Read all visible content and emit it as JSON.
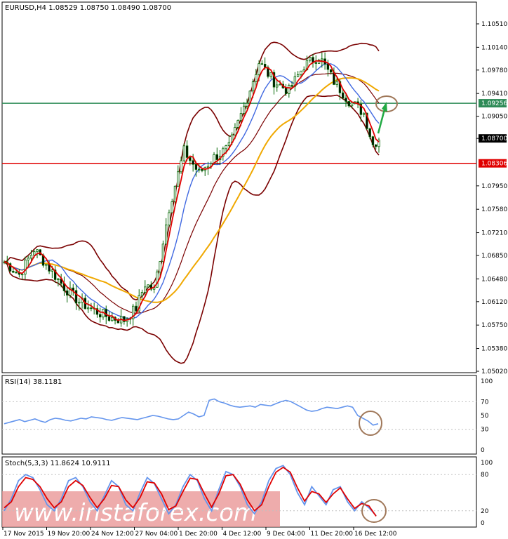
{
  "chart_data": [
    {
      "type": "candlestick",
      "title": "EURUSD,H4  1.08529 1.08750 1.08490 1.08700",
      "ylim": [
        1.0502,
        1.1051
      ],
      "y_ticks": [
        "1.10510",
        "1.10140",
        "1.09780",
        "1.09410",
        "1.09050",
        "1.08700",
        "1.07950",
        "1.07580",
        "1.07210",
        "1.06850",
        "1.06480",
        "1.06120",
        "1.05750",
        "1.05380",
        "1.05020"
      ],
      "price_labels": [
        {
          "value": 1.09256,
          "text": "1.09256",
          "color": "#2e8b57"
        },
        {
          "value": 1.08306,
          "text": "1.08306",
          "color": "#e00000"
        },
        {
          "value": 1.087,
          "text": "1.08700",
          "color": "#000000"
        }
      ],
      "x_labels": [
        "17 Nov 2015",
        "19 Nov 20:00",
        "24 Nov 12:00",
        "27 Nov 04:00",
        "1 Dec 20:00",
        "4 Dec 12:00",
        "9 Dec 04:00",
        "11 Dec 20:00",
        "16 Dec 12:00"
      ],
      "close_path": [
        [
          0,
          1.0675
        ],
        [
          5,
          1.0655
        ],
        [
          10,
          1.0695
        ],
        [
          15,
          1.0665
        ],
        [
          20,
          1.0635
        ],
        [
          25,
          1.0612
        ],
        [
          30,
          1.0598
        ],
        [
          35,
          1.0587
        ],
        [
          40,
          1.0583
        ],
        [
          44,
          1.0602
        ],
        [
          47,
          1.064
        ],
        [
          50,
          1.063
        ],
        [
          55,
          1.076
        ],
        [
          60,
          1.085
        ],
        [
          65,
          1.0815
        ],
        [
          70,
          1.084
        ],
        [
          75,
          1.0855
        ],
        [
          80,
          1.092
        ],
        [
          85,
          1.099
        ],
        [
          90,
          1.096
        ],
        [
          95,
          1.0945
        ],
        [
          100,
          1.0985
        ],
        [
          105,
          1.1
        ],
        [
          110,
          1.096
        ],
        [
          115,
          1.093
        ],
        [
          120,
          1.091
        ],
        [
          123,
          1.086
        ],
        [
          125,
          1.087
        ]
      ]
    },
    {
      "type": "line",
      "title": "RSI(14) 38.1181",
      "ylim": [
        0,
        100
      ],
      "y_ticks": [
        "100",
        "70",
        "50",
        "30",
        "0"
      ],
      "values": [
        38,
        40,
        42,
        44,
        41,
        43,
        45,
        42,
        40,
        44,
        46,
        45,
        43,
        42,
        44,
        46,
        45,
        48,
        47,
        46,
        44,
        43,
        45,
        47,
        46,
        45,
        44,
        46,
        48,
        50,
        49,
        47,
        45,
        44,
        45,
        50,
        55,
        52,
        48,
        50,
        72,
        74,
        70,
        68,
        65,
        63,
        62,
        63,
        64,
        62,
        66,
        65,
        64,
        67,
        70,
        72,
        70,
        66,
        62,
        58,
        56,
        57,
        60,
        62,
        61,
        60,
        62,
        64,
        62,
        50,
        46,
        42,
        36,
        38
      ]
    },
    {
      "type": "line",
      "title": "Stoch(5,3,3) 11.8624 10.9111",
      "ylim": [
        0,
        100
      ],
      "y_ticks": [
        "100",
        "80",
        "20",
        "0"
      ],
      "series": [
        {
          "values": [
            20,
            40,
            70,
            80,
            75,
            55,
            30,
            20,
            40,
            70,
            75,
            60,
            35,
            20,
            45,
            70,
            60,
            30,
            20,
            50,
            75,
            65,
            40,
            15,
            30,
            60,
            80,
            70,
            40,
            20,
            55,
            85,
            80,
            60,
            30,
            15,
            35,
            70,
            90,
            95,
            80,
            50,
            30,
            60,
            45,
            30,
            55,
            60,
            35,
            20,
            35,
            25,
            12
          ]
        },
        {
          "values": [
            25,
            35,
            60,
            75,
            72,
            60,
            40,
            25,
            35,
            60,
            70,
            62,
            42,
            25,
            40,
            62,
            60,
            38,
            25,
            42,
            68,
            66,
            48,
            22,
            28,
            52,
            74,
            72,
            48,
            26,
            48,
            78,
            80,
            64,
            38,
            20,
            30,
            60,
            84,
            92,
            84,
            58,
            36,
            52,
            48,
            34,
            48,
            58,
            40,
            24,
            32,
            28,
            11
          ]
        }
      ]
    }
  ],
  "watermark": "www.instaforex.com"
}
